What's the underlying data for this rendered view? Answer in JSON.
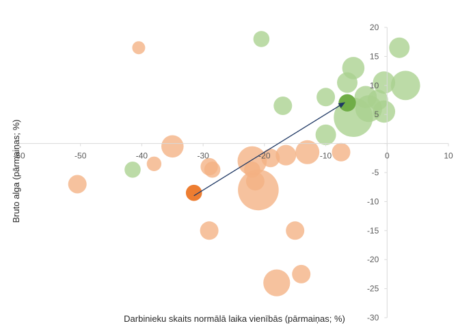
{
  "chart_data": {
    "type": "scatter",
    "subtype": "bubble",
    "title": "",
    "xlabel": "Darbinieku skaits normālā laika vienībās (pārmaiņas; %)",
    "ylabel": "Bruto alga (pārmaiņas; %)",
    "xlim": [
      -60,
      10
    ],
    "ylim": [
      -30,
      20
    ],
    "x_ticks": [
      -60,
      -50,
      -40,
      -30,
      -20,
      -10,
      0,
      10
    ],
    "y_ticks": [
      -30,
      -25,
      -20,
      -15,
      -10,
      -5,
      0,
      5,
      10,
      15,
      20
    ],
    "x_tick_labels": [
      "-60",
      "-50",
      "-40",
      "-30",
      "-20",
      "-10",
      "0",
      "10"
    ],
    "y_tick_labels": [
      "-30",
      "-25",
      "-20",
      "-15",
      "-10",
      "-5",
      "",
      "5",
      "10",
      "15",
      "20"
    ],
    "grid": false,
    "legend": "none",
    "colors": {
      "green": "#a9d18e",
      "orange": "#f4b183",
      "highlight_green": "#70ad47",
      "highlight_orange": "#ed7d31",
      "arrow": "#1f3864",
      "axis": "#d9d9d9",
      "text": "#595959"
    },
    "series": [
      {
        "color_key": "green",
        "points": [
          {
            "x": -20.5,
            "y": 18.0,
            "size": 2
          },
          {
            "x": 2.0,
            "y": 16.5,
            "size": 4
          },
          {
            "x": -5.5,
            "y": 13.0,
            "size": 5
          },
          {
            "x": -6.5,
            "y": 10.5,
            "size": 4
          },
          {
            "x": -0.5,
            "y": 10.5,
            "size": 5
          },
          {
            "x": 3.0,
            "y": 10.0,
            "size": 10
          },
          {
            "x": -10.0,
            "y": 8.0,
            "size": 3
          },
          {
            "x": -3.5,
            "y": 8.0,
            "size": 5
          },
          {
            "x": -1.5,
            "y": 7.5,
            "size": 4
          },
          {
            "x": -17.0,
            "y": 6.5,
            "size": 3
          },
          {
            "x": -3.0,
            "y": 6.0,
            "size": 8
          },
          {
            "x": -0.5,
            "y": 5.5,
            "size": 5
          },
          {
            "x": -5.5,
            "y": 4.5,
            "size": 20
          },
          {
            "x": -10.0,
            "y": 1.5,
            "size": 4
          },
          {
            "x": -41.5,
            "y": -4.5,
            "size": 2
          }
        ]
      },
      {
        "color_key": "orange",
        "points": [
          {
            "x": -40.5,
            "y": 16.5,
            "size": 1
          },
          {
            "x": -35.0,
            "y": -0.5,
            "size": 5
          },
          {
            "x": -38.0,
            "y": -3.5,
            "size": 1.5
          },
          {
            "x": -50.5,
            "y": -7.0,
            "size": 3
          },
          {
            "x": -29.0,
            "y": -4.0,
            "size": 2.5
          },
          {
            "x": -28.5,
            "y": -4.5,
            "size": 2
          },
          {
            "x": -22.0,
            "y": -3.0,
            "size": 10
          },
          {
            "x": -19.0,
            "y": -2.5,
            "size": 3
          },
          {
            "x": -16.5,
            "y": -2.0,
            "size": 4
          },
          {
            "x": -13.0,
            "y": -1.5,
            "size": 6
          },
          {
            "x": -7.5,
            "y": -1.5,
            "size": 3
          },
          {
            "x": -22.0,
            "y": -4.5,
            "size": 2
          },
          {
            "x": -21.5,
            "y": -6.5,
            "size": 3
          },
          {
            "x": -21.0,
            "y": -8.0,
            "size": 22
          },
          {
            "x": -29.0,
            "y": -15.0,
            "size": 3
          },
          {
            "x": -15.0,
            "y": -15.0,
            "size": 3
          },
          {
            "x": -14.0,
            "y": -22.5,
            "size": 3
          },
          {
            "x": -18.0,
            "y": -24.0,
            "size": 8
          }
        ]
      },
      {
        "color_key": "highlight_orange",
        "points": [
          {
            "x": -31.5,
            "y": -8.5,
            "size": 2
          }
        ]
      },
      {
        "color_key": "highlight_green",
        "points": [
          {
            "x": -6.5,
            "y": 7.0,
            "size": 2.5
          }
        ]
      }
    ],
    "annotations": [
      {
        "type": "arrow",
        "from": {
          "x": -31.5,
          "y": -9.0
        },
        "to": {
          "x": -7.0,
          "y": 7.0
        }
      }
    ]
  }
}
